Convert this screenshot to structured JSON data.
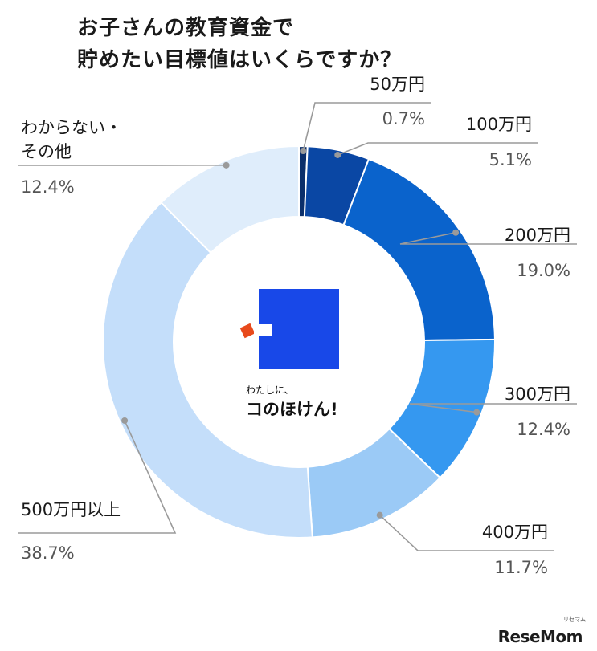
{
  "title_lines": [
    "お子さんの教育資金で",
    "貯めたい目標値はいくらですか？"
  ],
  "center_logo": {
    "small_text": "わたしに、",
    "big_text": "コのほけん!",
    "square_color": "#1848e8",
    "accent_color": "#e84a1c"
  },
  "watermark": {
    "text": "ReseMom",
    "sub_text": "リセマム"
  },
  "chart_data": {
    "type": "pie",
    "variant": "donut",
    "unit": "%",
    "title": "お子さんの教育資金で貯めたい目標値はいくらですか？",
    "categories": [
      "50万円",
      "100万円",
      "200万円",
      "300万円",
      "400万円",
      "500万円以上",
      "わからない・その他"
    ],
    "values": [
      0.7,
      5.1,
      19.0,
      12.4,
      11.7,
      38.7,
      12.4
    ],
    "value_labels": [
      "0.7%",
      "5.1%",
      "19.0%",
      "12.4%",
      "11.7%",
      "38.7%",
      "12.4%"
    ],
    "colors": [
      "#0b2f6b",
      "#0a47a4",
      "#0a63cc",
      "#3598f0",
      "#9bcaf6",
      "#c4defa",
      "#dfedfb"
    ],
    "start": "12 o'clock",
    "direction": "clockwise"
  }
}
